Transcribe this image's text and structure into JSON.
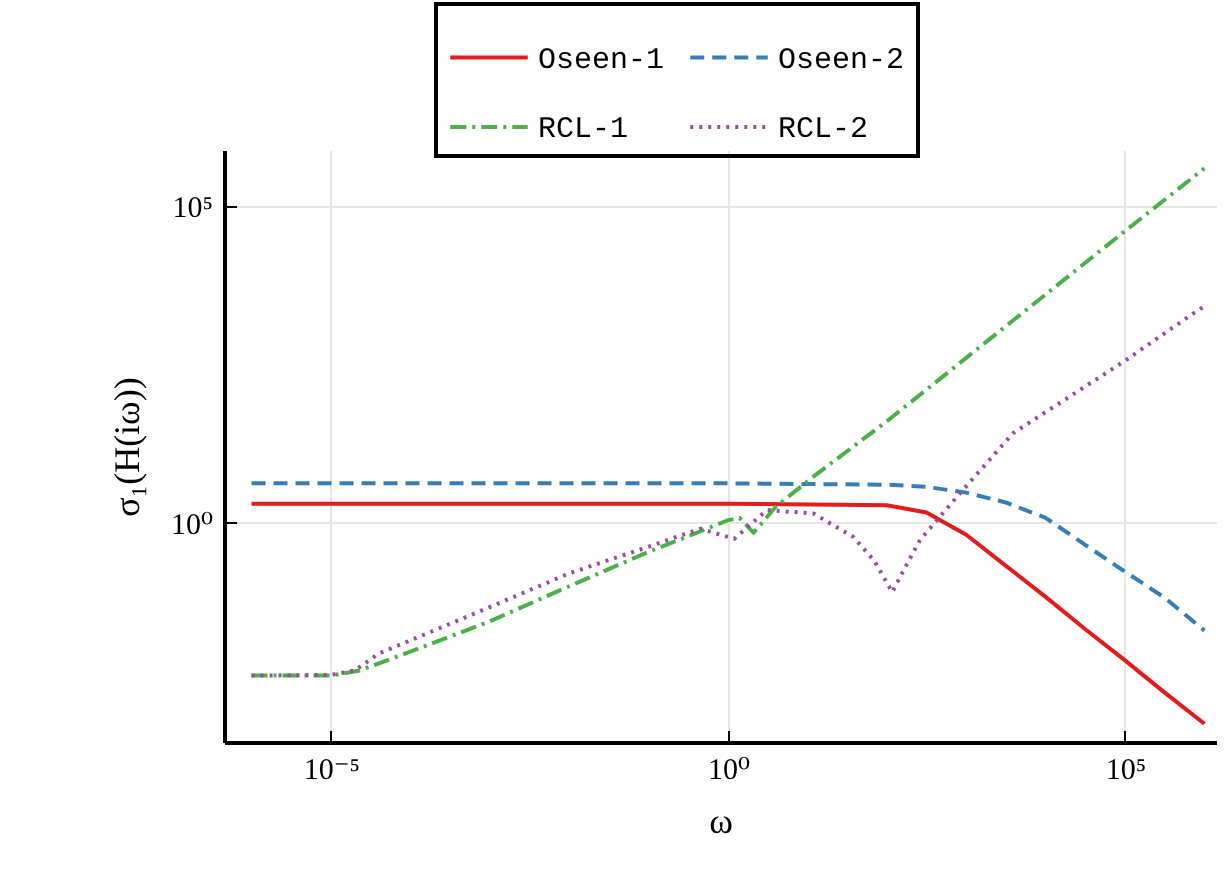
{
  "chart_data": {
    "type": "line",
    "xlabel": "ω",
    "ylabel": "σ₁(H(iω))",
    "log": "xy",
    "grid": true,
    "legend": "top",
    "marker": "none",
    "xlim": [
      4.5e-07,
      1400000.0
    ],
    "xticks": [
      {
        "value": 1e-05,
        "label": "10⁻⁵"
      },
      {
        "value": 1,
        "label": "10⁰"
      },
      {
        "value": 100000,
        "label": "10⁵"
      }
    ],
    "ylim": [
      0.00035,
      760000
    ],
    "yticks": [
      {
        "value": 1,
        "label": "10⁰"
      },
      {
        "value": 100000,
        "label": "10⁵"
      }
    ],
    "series": [
      {
        "name": "Oseen-1",
        "color": "#e41a1c",
        "line_style": "solid",
        "x": [
          1e-06,
          0.0001,
          0.01,
          1,
          100,
          316,
          1000,
          3162,
          10000,
          31620,
          100000,
          316200,
          1000000
        ],
        "values": [
          2.0,
          2.0,
          2.0,
          2.0,
          1.9,
          1.46,
          0.65,
          0.21,
          0.068,
          0.021,
          0.0068,
          0.0021,
          0.00068
        ]
      },
      {
        "name": "Oseen-2",
        "color": "#377eb8",
        "line_style": "dashed",
        "x": [
          1e-06,
          0.0001,
          0.01,
          1,
          100,
          316,
          1000,
          3162,
          10000,
          31620,
          100000,
          316200,
          1000000
        ],
        "values": [
          4.2,
          4.2,
          4.2,
          4.2,
          4.0,
          3.7,
          3.0,
          2.1,
          1.2,
          0.45,
          0.17,
          0.066,
          0.02
        ]
      },
      {
        "name": "RCL-1",
        "color": "#4daf4a",
        "line_style": "dashdot",
        "x": [
          1e-06,
          1e-05,
          2.3e-05,
          0.0001,
          0.001,
          0.01,
          0.1,
          0.3,
          1,
          1.4,
          2.1,
          4,
          12,
          100,
          1000,
          10000,
          100000,
          1000000
        ],
        "values": [
          0.0039,
          0.0039,
          0.0047,
          0.0093,
          0.028,
          0.1,
          0.35,
          0.6,
          1.1,
          1.2,
          0.7,
          1.8,
          5.4,
          40,
          400,
          4000,
          40000,
          390000
        ]
      },
      {
        "name": "RCL-2",
        "color": "#984ea3",
        "line_style": "dotted",
        "x": [
          1e-06,
          1e-05,
          2e-05,
          4e-05,
          0.0001,
          0.001,
          0.01,
          0.1,
          0.3,
          0.45,
          1.2,
          3.1,
          12,
          38,
          70,
          117,
          178,
          263,
          830,
          3900,
          100000,
          720000,
          1000000
        ],
        "values": [
          0.0039,
          0.004,
          0.0047,
          0.0087,
          0.014,
          0.047,
          0.16,
          0.42,
          0.68,
          0.81,
          0.56,
          1.6,
          1.4,
          0.6,
          0.25,
          0.081,
          0.22,
          0.54,
          2.9,
          26,
          360,
          2000,
          2600
        ]
      }
    ]
  }
}
